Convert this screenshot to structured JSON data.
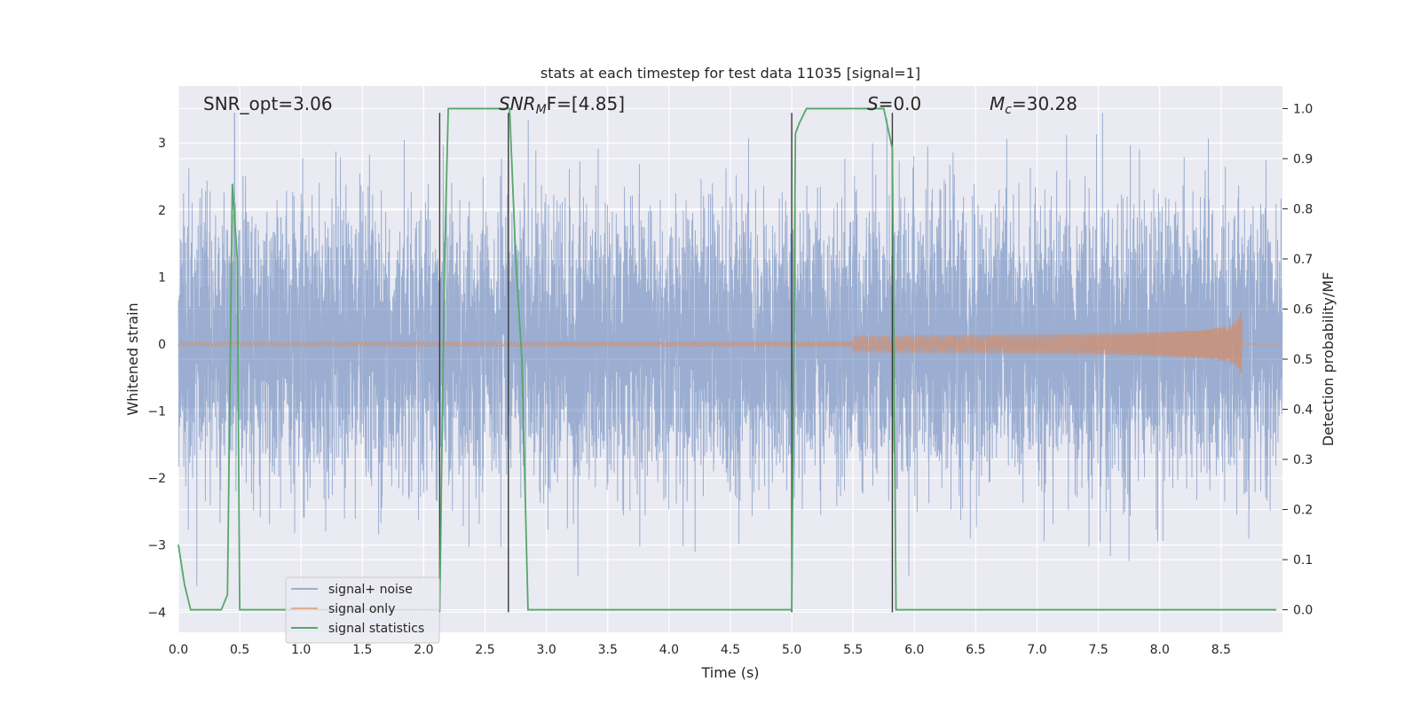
{
  "chart_data": {
    "type": "line",
    "title": "stats at each timestep for test data 11035 [signal=1]",
    "xlabel": "Time (s)",
    "ylabel": "Whitened strain",
    "ylabel_right": "Detection probability/MF",
    "xlim": [
      0,
      9.0
    ],
    "ylim": [
      -4.3,
      3.85
    ],
    "ylim_right": [
      -0.045,
      1.045
    ],
    "x_ticks": [
      0.0,
      0.5,
      1.0,
      1.5,
      2.0,
      2.5,
      3.0,
      3.5,
      4.0,
      4.5,
      5.0,
      5.5,
      6.0,
      6.5,
      7.0,
      7.5,
      8.0,
      8.5
    ],
    "y_ticks": [
      3,
      2,
      1,
      0,
      -1,
      -2,
      -3,
      -4
    ],
    "y_tick_labels": [
      "3",
      "2",
      "1",
      "0",
      "−1",
      "−2",
      "−3",
      "−4"
    ],
    "y_ticks_right": [
      1.0,
      0.9,
      0.8,
      0.7,
      0.6,
      0.5,
      0.4,
      0.3,
      0.2,
      0.1,
      0.0
    ],
    "grid": true,
    "legend_placement": "lower-left",
    "annotations": {
      "snr_opt": "SNR_opt=3.06",
      "snr_mf_sym": "SNR",
      "snr_mf_sub": "M",
      "snr_mf_rest": "F=[4.85]",
      "s_sym": "S",
      "s_rest": "=0.0",
      "mc_sym": "M",
      "mc_sub": "c",
      "mc_rest": "=30.28"
    },
    "vertical_lines": [
      {
        "x": 2.13,
        "y_range": [
          -4.0,
          3.45
        ]
      },
      {
        "x": 2.69,
        "y_range": [
          -4.0,
          3.45
        ]
      },
      {
        "x": 5.0,
        "y_range": [
          -4.0,
          3.45
        ]
      },
      {
        "x": 5.82,
        "y_range": [
          -4.0,
          3.45
        ]
      }
    ],
    "series": [
      {
        "name": "signal+ noise",
        "color": "#4c72b0",
        "description_values": "Gaussian whitened noise roughly between -3.5 and 3.4 over 0 to 9 s",
        "amplitude_std": 1.0,
        "range": [
          -4.0,
          3.45
        ]
      },
      {
        "name": "signal only",
        "color": "#dd8452",
        "chirp_merger_time": 8.67,
        "peak_amplitude": 0.7
      },
      {
        "name": "signal statistics",
        "color": "#55a868",
        "axis": "right",
        "x": [
          0.0,
          0.05,
          0.1,
          0.2,
          0.3,
          0.35,
          0.4,
          0.44,
          0.48,
          0.5,
          0.55,
          1.0,
          1.5,
          2.0,
          2.1,
          2.13,
          2.17,
          2.2,
          2.25,
          2.5,
          2.68,
          2.7,
          2.75,
          2.8,
          2.85,
          3.0,
          4.0,
          5.0,
          5.03,
          5.06,
          5.12,
          5.5,
          5.75,
          5.82,
          5.85,
          5.9,
          6.0,
          7.0,
          8.0,
          8.95
        ],
        "y": [
          0.13,
          0.05,
          0.0,
          0.0,
          0.0,
          0.0,
          0.03,
          0.85,
          0.7,
          0.0,
          0.0,
          0.0,
          0.0,
          0.0,
          0.0,
          0.0,
          0.7,
          1.0,
          1.0,
          1.0,
          1.0,
          1.0,
          0.7,
          0.5,
          0.0,
          0.0,
          0.0,
          0.0,
          0.95,
          0.97,
          1.0,
          1.0,
          1.0,
          0.92,
          0.0,
          0.0,
          0.0,
          0.0,
          0.0,
          0.0
        ]
      }
    ]
  }
}
